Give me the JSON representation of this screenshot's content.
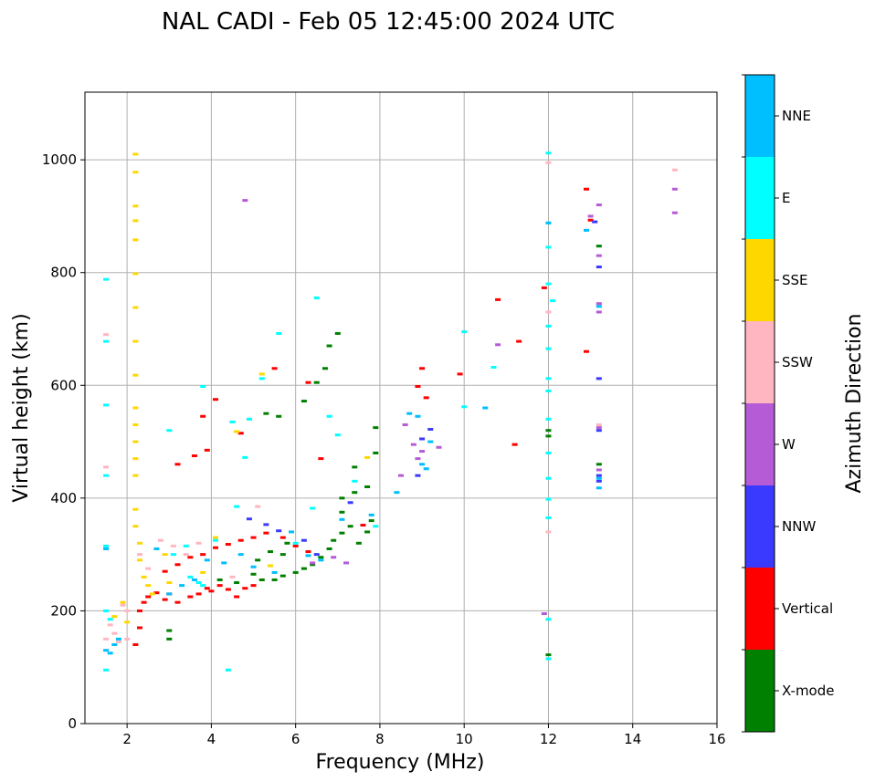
{
  "chart_data": {
    "type": "scatter",
    "title": "NAL CADI - Feb 05 12:45:00 2024 UTC",
    "xlabel": "Frequency (MHz)",
    "ylabel": "Virtual height (km)",
    "xlim": [
      1,
      16
    ],
    "ylim": [
      0,
      1120
    ],
    "xticks": [
      2,
      4,
      6,
      8,
      10,
      12,
      14,
      16
    ],
    "yticks": [
      0,
      200,
      400,
      600,
      800,
      1000
    ],
    "grid": true,
    "colorbar": {
      "title": "Azimuth Direction",
      "categories": [
        {
          "name": "X-mode",
          "color": "#008000"
        },
        {
          "name": "Vertical",
          "color": "#ff0000"
        },
        {
          "name": "NNW",
          "color": "#3a3aff"
        },
        {
          "name": "W",
          "color": "#b55bd5"
        },
        {
          "name": "SSW",
          "color": "#ffb6c1"
        },
        {
          "name": "SSE",
          "color": "#ffd700"
        },
        {
          "name": "E",
          "color": "#00ffff"
        },
        {
          "name": "NNE",
          "color": "#00bfff"
        }
      ]
    },
    "series": [
      {
        "name": "X-mode",
        "points": [
          [
            3.0,
            150
          ],
          [
            3.0,
            165
          ],
          [
            4.2,
            255
          ],
          [
            4.6,
            250
          ],
          [
            5.0,
            265
          ],
          [
            5.2,
            255
          ],
          [
            5.5,
            255
          ],
          [
            5.7,
            262
          ],
          [
            6.0,
            268
          ],
          [
            6.2,
            275
          ],
          [
            6.4,
            282
          ],
          [
            6.6,
            295
          ],
          [
            6.8,
            310
          ],
          [
            6.9,
            325
          ],
          [
            7.1,
            338
          ],
          [
            7.3,
            350
          ],
          [
            7.5,
            320
          ],
          [
            7.7,
            340
          ],
          [
            7.8,
            360
          ],
          [
            7.1,
            400
          ],
          [
            7.4,
            410
          ],
          [
            7.7,
            420
          ],
          [
            7.9,
            480
          ],
          [
            7.4,
            455
          ],
          [
            7.1,
            375
          ],
          [
            5.1,
            290
          ],
          [
            5.4,
            305
          ],
          [
            5.7,
            300
          ],
          [
            5.8,
            320
          ],
          [
            5.3,
            550
          ],
          [
            5.6,
            545
          ],
          [
            6.2,
            572
          ],
          [
            6.5,
            605
          ],
          [
            6.7,
            630
          ],
          [
            6.8,
            670
          ],
          [
            7.0,
            692
          ],
          [
            7.9,
            525
          ],
          [
            12.0,
            510
          ],
          [
            12.0,
            520
          ],
          [
            12.0,
            122
          ],
          [
            13.2,
            460
          ],
          [
            13.2,
            847
          ]
        ]
      },
      {
        "name": "Vertical",
        "points": [
          [
            2.2,
            140
          ],
          [
            2.3,
            170
          ],
          [
            2.3,
            200
          ],
          [
            2.4,
            215
          ],
          [
            2.5,
            225
          ],
          [
            2.7,
            232
          ],
          [
            2.9,
            220
          ],
          [
            3.0,
            230
          ],
          [
            3.2,
            215
          ],
          [
            3.5,
            225
          ],
          [
            3.7,
            230
          ],
          [
            3.9,
            240
          ],
          [
            4.0,
            235
          ],
          [
            4.2,
            245
          ],
          [
            4.4,
            238
          ],
          [
            4.6,
            225
          ],
          [
            4.8,
            240
          ],
          [
            5.0,
            245
          ],
          [
            2.9,
            270
          ],
          [
            3.2,
            282
          ],
          [
            3.5,
            295
          ],
          [
            3.8,
            300
          ],
          [
            4.1,
            312
          ],
          [
            4.4,
            318
          ],
          [
            4.7,
            325
          ],
          [
            5.0,
            330
          ],
          [
            5.3,
            338
          ],
          [
            5.7,
            330
          ],
          [
            6.0,
            315
          ],
          [
            6.3,
            305
          ],
          [
            3.2,
            460
          ],
          [
            3.6,
            475
          ],
          [
            3.9,
            485
          ],
          [
            4.1,
            575
          ],
          [
            5.5,
            630
          ],
          [
            6.3,
            605
          ],
          [
            6.6,
            470
          ],
          [
            8.9,
            598
          ],
          [
            9.0,
            630
          ],
          [
            9.1,
            578
          ],
          [
            9.9,
            620
          ],
          [
            10.8,
            752
          ],
          [
            11.3,
            678
          ],
          [
            11.9,
            773
          ],
          [
            12.9,
            660
          ],
          [
            12.9,
            948
          ],
          [
            13.0,
            893
          ],
          [
            3.8,
            545
          ],
          [
            4.7,
            515
          ],
          [
            7.6,
            352
          ],
          [
            11.2,
            495
          ]
        ]
      },
      {
        "name": "NNW",
        "points": [
          [
            4.9,
            363
          ],
          [
            5.3,
            353
          ],
          [
            5.6,
            342
          ],
          [
            6.2,
            325
          ],
          [
            6.5,
            300
          ],
          [
            8.9,
            440
          ],
          [
            9.0,
            505
          ],
          [
            9.2,
            522
          ],
          [
            13.1,
            890
          ],
          [
            13.2,
            810
          ],
          [
            13.2,
            612
          ],
          [
            13.2,
            520
          ],
          [
            13.2,
            430
          ],
          [
            13.2,
            440
          ],
          [
            7.3,
            392
          ]
        ]
      },
      {
        "name": "W",
        "points": [
          [
            4.8,
            928
          ],
          [
            6.4,
            285
          ],
          [
            6.9,
            295
          ],
          [
            7.2,
            285
          ],
          [
            8.5,
            440
          ],
          [
            8.6,
            530
          ],
          [
            8.8,
            495
          ],
          [
            8.9,
            470
          ],
          [
            9.0,
            483
          ],
          [
            9.4,
            490
          ],
          [
            10.8,
            672
          ],
          [
            11.9,
            195
          ],
          [
            13.0,
            900
          ],
          [
            13.2,
            920
          ],
          [
            13.2,
            830
          ],
          [
            13.2,
            745
          ],
          [
            13.2,
            730
          ],
          [
            13.2,
            525
          ],
          [
            13.2,
            450
          ],
          [
            15.0,
            948
          ],
          [
            15.0,
            906
          ]
        ]
      },
      {
        "name": "SSW",
        "points": [
          [
            1.5,
            150
          ],
          [
            1.6,
            175
          ],
          [
            1.7,
            160
          ],
          [
            1.8,
            145
          ],
          [
            1.9,
            210
          ],
          [
            2.0,
            200
          ],
          [
            2.3,
            300
          ],
          [
            2.5,
            275
          ],
          [
            2.8,
            325
          ],
          [
            3.1,
            315
          ],
          [
            3.4,
            300
          ],
          [
            3.7,
            320
          ],
          [
            5.1,
            385
          ],
          [
            12.0,
            340
          ],
          [
            12.0,
            995
          ],
          [
            12.0,
            730
          ],
          [
            13.2,
            530
          ],
          [
            15.0,
            982
          ],
          [
            1.5,
            690
          ],
          [
            1.5,
            455
          ],
          [
            2.0,
            150
          ],
          [
            4.5,
            260
          ]
        ]
      },
      {
        "name": "SSE",
        "points": [
          [
            2.2,
            1010
          ],
          [
            2.2,
            978
          ],
          [
            2.2,
            918
          ],
          [
            2.2,
            892
          ],
          [
            2.2,
            858
          ],
          [
            2.2,
            798
          ],
          [
            2.2,
            738
          ],
          [
            2.2,
            678
          ],
          [
            2.2,
            618
          ],
          [
            2.2,
            560
          ],
          [
            2.2,
            530
          ],
          [
            2.2,
            500
          ],
          [
            2.2,
            470
          ],
          [
            2.2,
            440
          ],
          [
            2.2,
            380
          ],
          [
            2.2,
            350
          ],
          [
            2.3,
            320
          ],
          [
            2.3,
            290
          ],
          [
            2.4,
            260
          ],
          [
            2.5,
            245
          ],
          [
            2.6,
            230
          ],
          [
            1.9,
            215
          ],
          [
            2.0,
            180
          ],
          [
            1.7,
            190
          ],
          [
            3.0,
            250
          ],
          [
            3.8,
            268
          ],
          [
            4.6,
            518
          ],
          [
            5.2,
            620
          ],
          [
            7.7,
            472
          ],
          [
            2.9,
            300
          ],
          [
            4.1,
            330
          ],
          [
            5.4,
            280
          ]
        ]
      },
      {
        "name": "E",
        "points": [
          [
            1.5,
            788
          ],
          [
            1.5,
            678
          ],
          [
            1.5,
            565
          ],
          [
            1.5,
            440
          ],
          [
            1.5,
            315
          ],
          [
            1.5,
            200
          ],
          [
            1.6,
            185
          ],
          [
            1.5,
            95
          ],
          [
            3.0,
            520
          ],
          [
            3.1,
            300
          ],
          [
            3.4,
            315
          ],
          [
            3.5,
            260
          ],
          [
            3.7,
            250
          ],
          [
            3.8,
            245
          ],
          [
            3.8,
            598
          ],
          [
            4.1,
            325
          ],
          [
            4.4,
            95
          ],
          [
            4.5,
            535
          ],
          [
            4.6,
            385
          ],
          [
            4.9,
            540
          ],
          [
            5.2,
            612
          ],
          [
            5.6,
            692
          ],
          [
            6.0,
            320
          ],
          [
            6.4,
            382
          ],
          [
            6.5,
            755
          ],
          [
            6.8,
            545
          ],
          [
            7.0,
            512
          ],
          [
            7.4,
            430
          ],
          [
            7.9,
            350
          ],
          [
            10.0,
            695
          ],
          [
            10.0,
            562
          ],
          [
            10.7,
            632
          ],
          [
            12.0,
            1012
          ],
          [
            12.0,
            888
          ],
          [
            12.0,
            845
          ],
          [
            12.0,
            780
          ],
          [
            12.0,
            705
          ],
          [
            12.0,
            665
          ],
          [
            12.0,
            612
          ],
          [
            12.0,
            590
          ],
          [
            12.0,
            480
          ],
          [
            12.0,
            435
          ],
          [
            12.0,
            398
          ],
          [
            12.0,
            365
          ],
          [
            12.0,
            185
          ],
          [
            12.0,
            115
          ],
          [
            12.0,
            540
          ],
          [
            12.1,
            750
          ],
          [
            4.8,
            472
          ]
        ]
      },
      {
        "name": "NNE",
        "points": [
          [
            1.5,
            130
          ],
          [
            1.6,
            125
          ],
          [
            1.7,
            140
          ],
          [
            1.8,
            150
          ],
          [
            1.5,
            310
          ],
          [
            2.7,
            310
          ],
          [
            3.0,
            230
          ],
          [
            3.3,
            245
          ],
          [
            3.6,
            255
          ],
          [
            3.9,
            290
          ],
          [
            4.3,
            285
          ],
          [
            4.7,
            300
          ],
          [
            5.0,
            278
          ],
          [
            5.5,
            268
          ],
          [
            5.9,
            340
          ],
          [
            6.3,
            298
          ],
          [
            6.6,
            290
          ],
          [
            7.1,
            362
          ],
          [
            8.4,
            410
          ],
          [
            8.7,
            550
          ],
          [
            8.9,
            545
          ],
          [
            9.0,
            460
          ],
          [
            9.2,
            500
          ],
          [
            10.5,
            560
          ],
          [
            12.0,
            888
          ],
          [
            12.9,
            875
          ],
          [
            13.2,
            418
          ],
          [
            13.2,
            435
          ],
          [
            13.2,
            740
          ],
          [
            7.8,
            370
          ],
          [
            9.1,
            452
          ]
        ]
      }
    ]
  }
}
